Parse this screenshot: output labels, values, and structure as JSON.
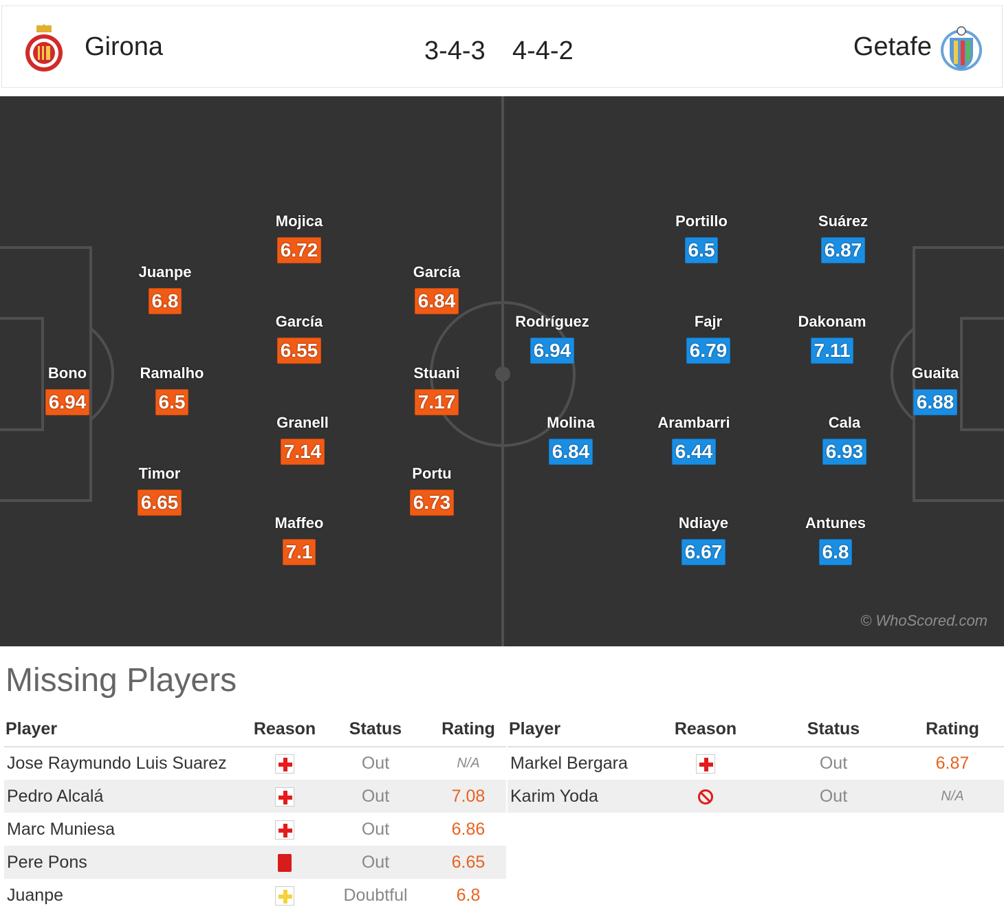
{
  "header": {
    "home_team": "Girona",
    "away_team": "Getafe",
    "home_formation": "3-4-3",
    "away_formation": "4-4-2",
    "home_crest_icon": "girona-crest-icon",
    "away_crest_icon": "getafe-crest-icon"
  },
  "colors": {
    "home_rating": "#f05b16",
    "away_rating": "#1a8ee3",
    "pitch": "#333333"
  },
  "pitch": {
    "watermark": "© WhoScored.com",
    "home_players": [
      {
        "name": "Bono",
        "rating": "6.94"
      },
      {
        "name": "Juanpe",
        "rating": "6.8"
      },
      {
        "name": "Ramalho",
        "rating": "6.5"
      },
      {
        "name": "Timor",
        "rating": "6.65"
      },
      {
        "name": "Mojica",
        "rating": "6.72"
      },
      {
        "name": "García",
        "rating": "6.55"
      },
      {
        "name": "Granell",
        "rating": "7.14"
      },
      {
        "name": "Maffeo",
        "rating": "7.1"
      },
      {
        "name": "García",
        "rating": "6.84"
      },
      {
        "name": "Stuani",
        "rating": "7.17"
      },
      {
        "name": "Portu",
        "rating": "6.73"
      }
    ],
    "away_players": [
      {
        "name": "Rodríguez",
        "rating": "6.94"
      },
      {
        "name": "Molina",
        "rating": "6.84"
      },
      {
        "name": "Portillo",
        "rating": "6.5"
      },
      {
        "name": "Fajr",
        "rating": "6.79"
      },
      {
        "name": "Arambarri",
        "rating": "6.44"
      },
      {
        "name": "Ndiaye",
        "rating": "6.67"
      },
      {
        "name": "Suárez",
        "rating": "6.87"
      },
      {
        "name": "Dakonam",
        "rating": "7.11"
      },
      {
        "name": "Cala",
        "rating": "6.93"
      },
      {
        "name": "Antunes",
        "rating": "6.8"
      },
      {
        "name": "Guaita",
        "rating": "6.88"
      }
    ]
  },
  "missing": {
    "title": "Missing Players",
    "columns": {
      "player": "Player",
      "reason": "Reason",
      "status": "Status",
      "rating": "Rating"
    },
    "home": [
      {
        "player": "Jose Raymundo Luis Suarez",
        "reason_icon": "injury-icon",
        "status": "Out",
        "rating": "N/A"
      },
      {
        "player": "Pedro Alcalá",
        "reason_icon": "injury-icon",
        "status": "Out",
        "rating": "7.08"
      },
      {
        "player": "Marc Muniesa",
        "reason_icon": "injury-icon",
        "status": "Out",
        "rating": "6.86"
      },
      {
        "player": "Pere Pons",
        "reason_icon": "red-card-icon",
        "status": "Out",
        "rating": "6.65"
      },
      {
        "player": "Juanpe",
        "reason_icon": "doubtful-icon",
        "status": "Doubtful",
        "rating": "6.8"
      }
    ],
    "away": [
      {
        "player": "Markel Bergara",
        "reason_icon": "injury-icon",
        "status": "Out",
        "rating": "6.87"
      },
      {
        "player": "Karim Yoda",
        "reason_icon": "suspension-icon",
        "status": "Out",
        "rating": "N/A"
      }
    ]
  }
}
